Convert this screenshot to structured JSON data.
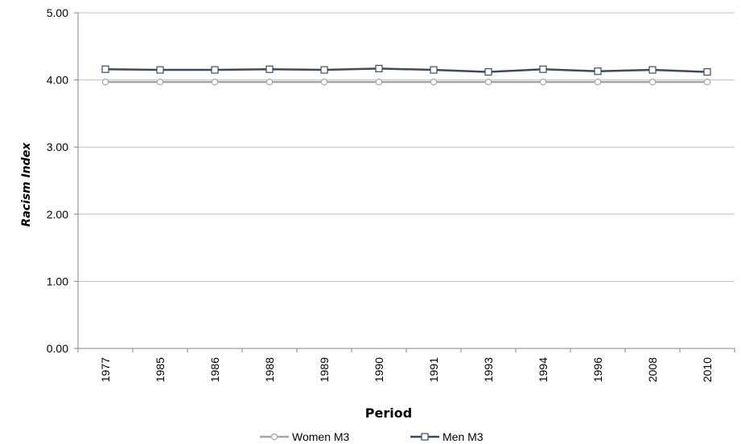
{
  "chart_data": {
    "type": "line",
    "categories": [
      "1977",
      "1985",
      "1986",
      "1988",
      "1989",
      "1990",
      "1991",
      "1993",
      "1994",
      "1996",
      "2008",
      "2010"
    ],
    "ylim": [
      0,
      5
    ],
    "yticks": [
      "0.00",
      "1.00",
      "2.00",
      "3.00",
      "4.00",
      "5.00"
    ],
    "xlabel": "Period",
    "ylabel": "Racism Index",
    "grid": "horizontal",
    "legend": "bottom",
    "series": [
      {
        "name": "Women M3",
        "color": "#a6a6a6",
        "marker": "circle",
        "values": [
          3.97,
          3.97,
          3.97,
          3.97,
          3.97,
          3.97,
          3.97,
          3.97,
          3.97,
          3.97,
          3.97,
          3.97
        ]
      },
      {
        "name": "Men M3",
        "color": "#3b4a60",
        "marker": "square",
        "values": [
          4.16,
          4.15,
          4.15,
          4.16,
          4.15,
          4.17,
          4.15,
          4.12,
          4.16,
          4.13,
          4.15,
          4.12
        ]
      }
    ]
  }
}
